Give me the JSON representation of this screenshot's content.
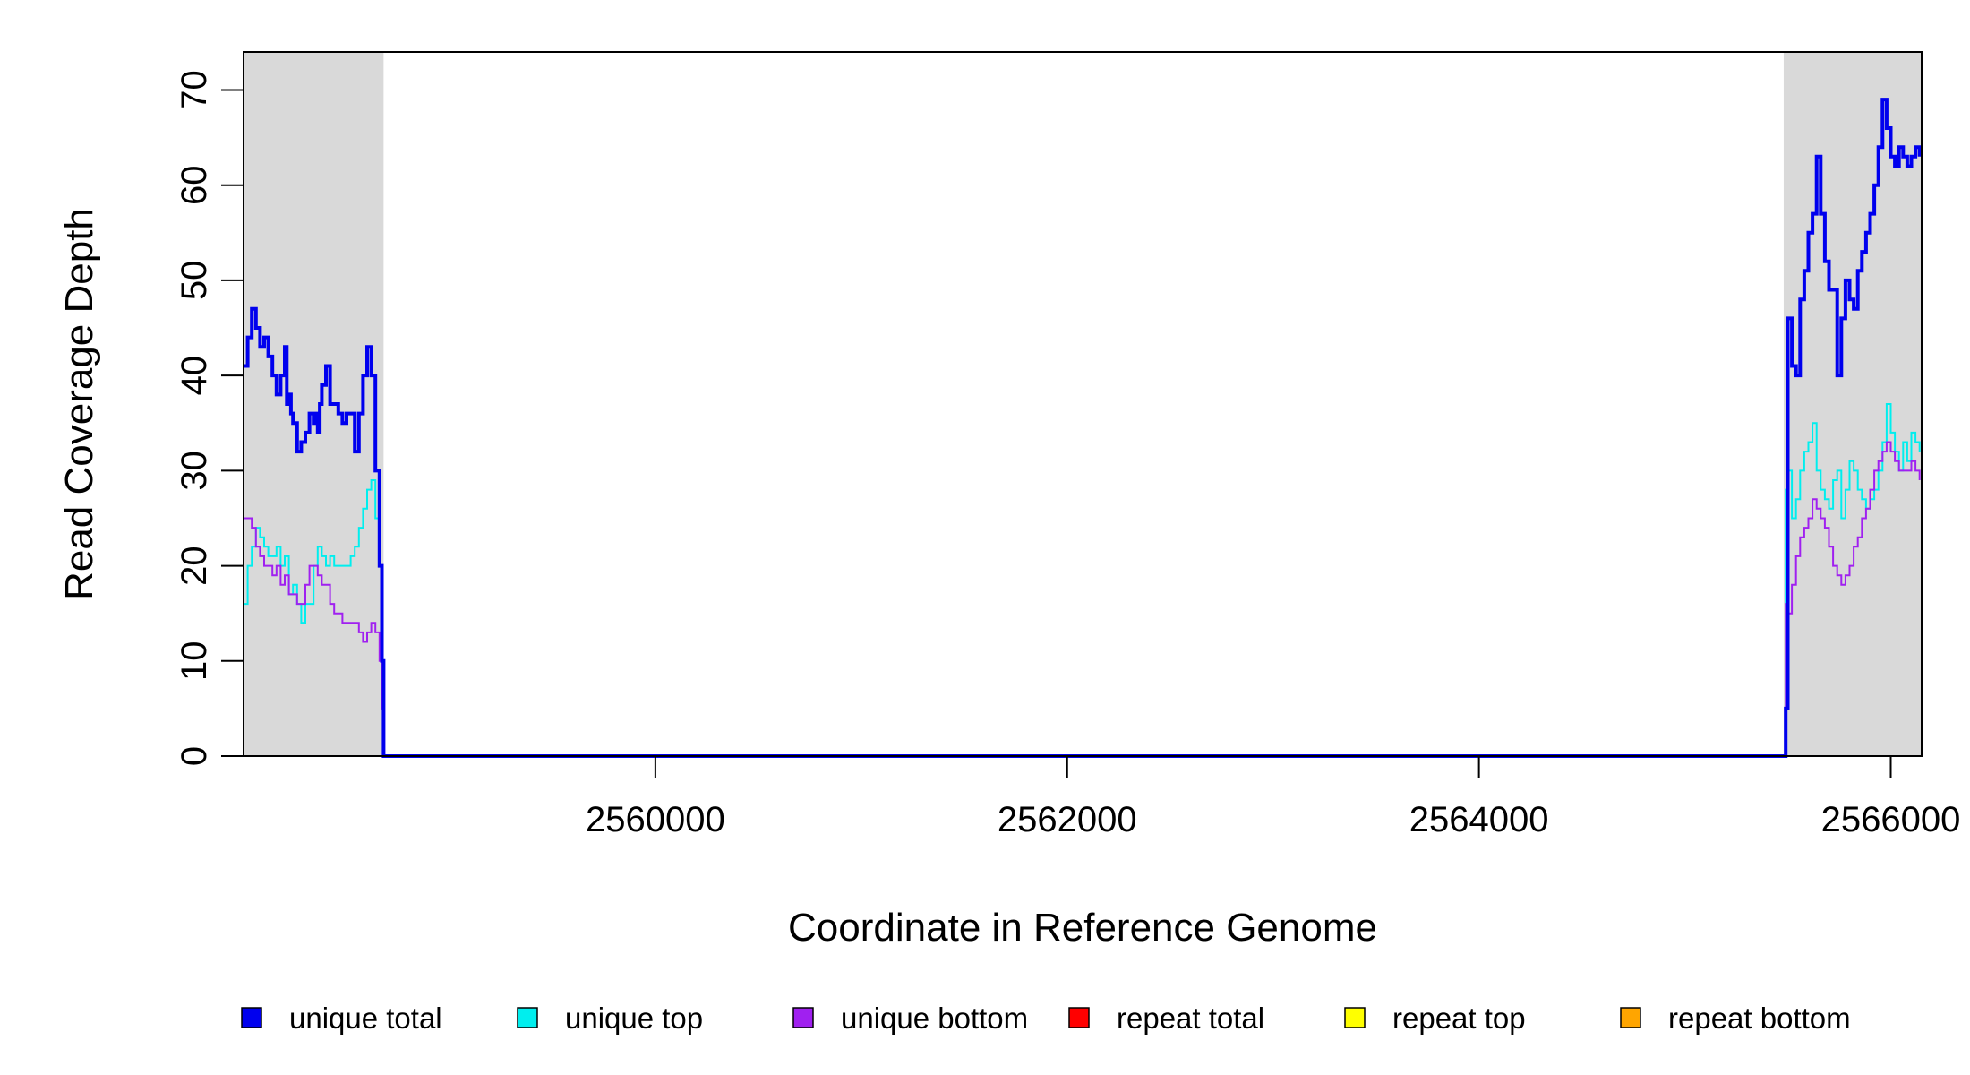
{
  "chart_data": {
    "type": "line",
    "xlabel": "Coordinate in Reference Genome",
    "ylabel": "Read Coverage Depth",
    "xlim": [
      2558000,
      2566150
    ],
    "ylim": [
      0,
      74
    ],
    "x_ticks": [
      2560000,
      2562000,
      2564000,
      2566000
    ],
    "x_tick_labels": [
      "2560000",
      "2562000",
      "2564000",
      "2566000"
    ],
    "y_ticks": [
      0,
      10,
      20,
      30,
      40,
      50,
      60,
      70
    ],
    "y_tick_labels": [
      "0",
      "10",
      "20",
      "30",
      "40",
      "50",
      "60",
      "70"
    ],
    "shaded_regions": [
      {
        "x0": 2558000,
        "x1": 2558680,
        "color": "#d9d9d9"
      },
      {
        "x0": 2565480,
        "x1": 2566150,
        "color": "#d9d9d9"
      }
    ],
    "legend_position": "bottom",
    "series": [
      {
        "name": "unique total",
        "color": "#0000ee",
        "stroke_width": 4,
        "x": [
          2558000,
          2558020,
          2558040,
          2558060,
          2558080,
          2558100,
          2558120,
          2558140,
          2558160,
          2558180,
          2558200,
          2558210,
          2558220,
          2558230,
          2558240,
          2558260,
          2558280,
          2558300,
          2558320,
          2558340,
          2558350,
          2558360,
          2558370,
          2558380,
          2558400,
          2558420,
          2558440,
          2558460,
          2558480,
          2558500,
          2558520,
          2558540,
          2558560,
          2558580,
          2558600,
          2558620,
          2558640,
          2558660,
          2558672,
          2558680,
          2558690,
          2558700,
          2565480,
          2565490,
          2565500,
          2565520,
          2565540,
          2565560,
          2565580,
          2565600,
          2565620,
          2565640,
          2565660,
          2565680,
          2565700,
          2565720,
          2565740,
          2565760,
          2565780,
          2565800,
          2565820,
          2565840,
          2565860,
          2565880,
          2565900,
          2565920,
          2565940,
          2565960,
          2565980,
          2566000,
          2566020,
          2566040,
          2566060,
          2566080,
          2566100,
          2566120,
          2566140
        ],
        "y": [
          41,
          44,
          47,
          45,
          43,
          44,
          42,
          40,
          38,
          40,
          43,
          37,
          38,
          36,
          35,
          32,
          33,
          34,
          36,
          35,
          36,
          34,
          37,
          39,
          41,
          37,
          37,
          36,
          35,
          36,
          36,
          32,
          36,
          40,
          43,
          40,
          30,
          20,
          10,
          0,
          0,
          0,
          0,
          5,
          46,
          41,
          40,
          48,
          51,
          55,
          57,
          63,
          57,
          52,
          49,
          49,
          40,
          46,
          50,
          48,
          47,
          51,
          53,
          55,
          57,
          60,
          64,
          69,
          66,
          63,
          62,
          64,
          63,
          62,
          63,
          64,
          63
        ]
      },
      {
        "name": "unique top",
        "color": "#00eeee",
        "stroke_width": 2,
        "x": [
          2558000,
          2558020,
          2558040,
          2558060,
          2558080,
          2558100,
          2558120,
          2558140,
          2558160,
          2558180,
          2558200,
          2558220,
          2558240,
          2558260,
          2558280,
          2558300,
          2558320,
          2558340,
          2558360,
          2558380,
          2558400,
          2558420,
          2558440,
          2558460,
          2558480,
          2558500,
          2558520,
          2558540,
          2558560,
          2558580,
          2558600,
          2558620,
          2558640,
          2558660,
          2558672,
          2558680,
          2558700,
          2565480,
          2565490,
          2565500,
          2565520,
          2565540,
          2565560,
          2565580,
          2565600,
          2565620,
          2565640,
          2565660,
          2565680,
          2565700,
          2565720,
          2565740,
          2565760,
          2565780,
          2565800,
          2565820,
          2565840,
          2565860,
          2565880,
          2565900,
          2565920,
          2565940,
          2565960,
          2565980,
          2566000,
          2566020,
          2566040,
          2566060,
          2566080,
          2566100,
          2566120,
          2566140
        ],
        "y": [
          16,
          20,
          22,
          24,
          23,
          22,
          21,
          21,
          22,
          20,
          21,
          17,
          18,
          16,
          14,
          16,
          16,
          20,
          22,
          21,
          20,
          21,
          20,
          20,
          20,
          20,
          21,
          22,
          24,
          26,
          28,
          29,
          25,
          20,
          10,
          0,
          0,
          0,
          28,
          30,
          25,
          27,
          30,
          32,
          33,
          35,
          30,
          28,
          27,
          26,
          29,
          30,
          25,
          28,
          31,
          30,
          28,
          27,
          26,
          27,
          28,
          30,
          33,
          37,
          34,
          32,
          30,
          33,
          31,
          34,
          33,
          32
        ]
      },
      {
        "name": "unique bottom",
        "color": "#a020f0",
        "stroke_width": 2,
        "x": [
          2558000,
          2558020,
          2558040,
          2558060,
          2558080,
          2558100,
          2558120,
          2558140,
          2558160,
          2558180,
          2558200,
          2558220,
          2558240,
          2558260,
          2558280,
          2558300,
          2558320,
          2558340,
          2558360,
          2558380,
          2558400,
          2558420,
          2558440,
          2558460,
          2558480,
          2558500,
          2558520,
          2558540,
          2558560,
          2558580,
          2558600,
          2558620,
          2558640,
          2558660,
          2558672,
          2558680,
          2558700,
          2565480,
          2565490,
          2565500,
          2565520,
          2565540,
          2565560,
          2565580,
          2565600,
          2565620,
          2565640,
          2565660,
          2565680,
          2565700,
          2565720,
          2565740,
          2565760,
          2565780,
          2565800,
          2565820,
          2565840,
          2565860,
          2565880,
          2565900,
          2565920,
          2565940,
          2565960,
          2565980,
          2566000,
          2566020,
          2566040,
          2566060,
          2566080,
          2566100,
          2566120,
          2566140
        ],
        "y": [
          25,
          25,
          24,
          22,
          21,
          20,
          20,
          19,
          20,
          18,
          19,
          17,
          17,
          16,
          16,
          18,
          20,
          20,
          19,
          18,
          18,
          16,
          15,
          15,
          14,
          14,
          14,
          14,
          13,
          12,
          13,
          14,
          13,
          10,
          5,
          0,
          0,
          0,
          16,
          15,
          18,
          21,
          23,
          24,
          25,
          27,
          26,
          25,
          24,
          22,
          20,
          19,
          18,
          19,
          20,
          22,
          23,
          25,
          26,
          28,
          30,
          31,
          32,
          33,
          32,
          31,
          30,
          30,
          30,
          31,
          30,
          29
        ]
      },
      {
        "name": "repeat total",
        "color": "#ff0000",
        "stroke_width": 2,
        "x": [
          2558000,
          2566150
        ],
        "y": [
          0,
          0
        ]
      },
      {
        "name": "repeat top",
        "color": "#ffff00",
        "stroke_width": 2,
        "x": [
          2558000,
          2566150
        ],
        "y": [
          0,
          0
        ]
      },
      {
        "name": "repeat bottom",
        "color": "#ffa500",
        "stroke_width": 2,
        "x": [
          2558000,
          2566150
        ],
        "y": [
          0,
          0
        ]
      }
    ]
  }
}
